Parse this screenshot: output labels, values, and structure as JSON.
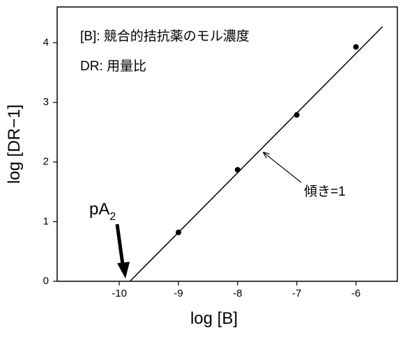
{
  "chart_data": {
    "type": "scatter",
    "xlabel": "log [B]",
    "ylabel": "log [DR−1]",
    "annotations": {
      "legend_b": "[B]: 競合的拮抗薬のモル濃度",
      "legend_dr": "DR: 用量比",
      "slope": "傾き=1",
      "pa": "pA",
      "pa_sub": "2"
    },
    "x": [
      -9,
      -8,
      -7,
      -6
    ],
    "values": [
      0.82,
      1.87,
      2.79,
      3.93
    ],
    "color": "#000000",
    "fit_line": {
      "x": [
        -9.82,
        -5.55
      ],
      "values": [
        0,
        4.27
      ]
    },
    "xlim": [
      -11.05,
      -5.3
    ],
    "xticks": [
      -10,
      -9,
      -8,
      -7,
      -6
    ],
    "ylim": [
      0,
      4.6
    ],
    "yticks": [
      0,
      1,
      2,
      3,
      4
    ]
  }
}
